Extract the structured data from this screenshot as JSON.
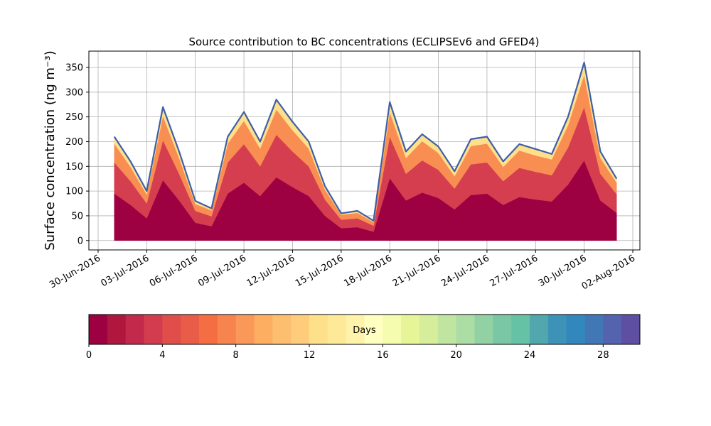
{
  "chart_data": {
    "type": "stacked_area",
    "title": "Source contribution to BC concentrations (ECLIPSEv6 and GFED4)",
    "ylabel": "Surface concentration (ng m⁻³)",
    "x": [
      "01-Jul-2016",
      "02-Jul-2016",
      "03-Jul-2016",
      "04-Jul-2016",
      "05-Jul-2016",
      "06-Jul-2016",
      "07-Jul-2016",
      "08-Jul-2016",
      "09-Jul-2016",
      "10-Jul-2016",
      "11-Jul-2016",
      "12-Jul-2016",
      "13-Jul-2016",
      "14-Jul-2016",
      "15-Jul-2016",
      "16-Jul-2016",
      "17-Jul-2016",
      "18-Jul-2016",
      "19-Jul-2016",
      "20-Jul-2016",
      "21-Jul-2016",
      "22-Jul-2016",
      "23-Jul-2016",
      "24-Jul-2016",
      "25-Jul-2016",
      "26-Jul-2016",
      "27-Jul-2016",
      "28-Jul-2016",
      "29-Jul-2016",
      "30-Jul-2016",
      "31-Jul-2016",
      "01-Aug-2016"
    ],
    "series": [
      {
        "color": "#9e0142",
        "values": [
          95,
          72,
          45,
          122,
          81,
          36,
          29,
          95,
          117,
          90,
          128,
          108,
          90,
          50,
          25,
          27,
          18,
          126,
          81,
          97,
          86,
          63,
          92,
          95,
          72,
          88,
          83,
          79,
          113,
          162,
          81,
          56
        ]
      },
      {
        "color": "#d53e4f",
        "values": [
          63,
          48,
          30,
          81,
          54,
          24,
          20,
          63,
          78,
          60,
          86,
          72,
          60,
          33,
          17,
          18,
          12,
          84,
          54,
          65,
          57,
          42,
          62,
          63,
          48,
          59,
          56,
          53,
          75,
          108,
          54,
          38
        ]
      },
      {
        "color": "#f98e52",
        "values": [
          38,
          29,
          18,
          49,
          32,
          14,
          12,
          38,
          47,
          36,
          51,
          43,
          36,
          20,
          10,
          11,
          7,
          50,
          32,
          39,
          34,
          25,
          37,
          38,
          29,
          35,
          33,
          32,
          45,
          65,
          32,
          23
        ]
      },
      {
        "color": "#fee08b",
        "values": [
          14,
          11,
          7,
          18,
          13,
          6,
          4,
          14,
          18,
          14,
          20,
          17,
          14,
          7,
          3,
          4,
          3,
          20,
          13,
          14,
          13,
          10,
          14,
          14,
          11,
          13,
          13,
          11,
          17,
          25,
          13,
          8
        ]
      }
    ],
    "xticks": [
      "30-Jun-2016",
      "03-Jul-2016",
      "06-Jul-2016",
      "09-Jul-2016",
      "12-Jul-2016",
      "15-Jul-2016",
      "18-Jul-2016",
      "21-Jul-2016",
      "24-Jul-2016",
      "27-Jul-2016",
      "30-Jul-2016",
      "02-Aug-2016"
    ],
    "ylim": [
      -19,
      383
    ],
    "yticks": [
      0,
      50,
      100,
      150,
      200,
      250,
      300,
      350
    ],
    "grid": true,
    "colorbar": {
      "label": "Days",
      "lim": [
        0,
        30
      ],
      "ticks": [
        0,
        4,
        8,
        12,
        16,
        20,
        24,
        28
      ],
      "colors": [
        "#9e0142",
        "#b0173f",
        "#c2294a",
        "#d33c4e",
        "#df4e4b",
        "#e95c47",
        "#f46d43",
        "#f7844e",
        "#f99858",
        "#fdae61",
        "#fdbe6f",
        "#fecc7b",
        "#fee08b",
        "#fee999",
        "#fff2aa",
        "#ffffbf",
        "#f5fbaf",
        "#e6f598",
        "#d6ee9b",
        "#c0e5a0",
        "#abdda4",
        "#92d1a4",
        "#79c7a5",
        "#66c2a5",
        "#52a6ad",
        "#3d93b7",
        "#3288bd",
        "#4277b5",
        "#5463ad",
        "#5e4fa2"
      ]
    }
  }
}
